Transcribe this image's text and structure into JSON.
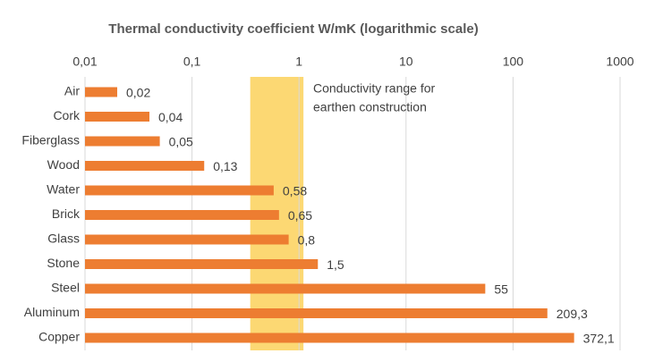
{
  "chart_data": {
    "type": "bar",
    "orientation": "horizontal",
    "title": "Thermal conductivity coefficient W/mK (logarithmic scale)",
    "categories": [
      "Air",
      "Cork",
      "Fiberglass",
      "Wood",
      "Water",
      "Brick",
      "Glass",
      "Stone",
      "Steel",
      "Aluminum",
      "Copper"
    ],
    "values": [
      0.02,
      0.04,
      0.05,
      0.13,
      0.58,
      0.65,
      0.8,
      1.5,
      55,
      209.3,
      372.1
    ],
    "value_labels": [
      "0,02",
      "0,04",
      "0,05",
      "0,13",
      "0,58",
      "0,65",
      "0,8",
      "1,5",
      "55",
      "209,3",
      "372,1"
    ],
    "color": "#ed7d31",
    "xscale": "log",
    "xlim": [
      0.01,
      1000
    ],
    "xticks": [
      {
        "value": 0.01,
        "label": "0,01"
      },
      {
        "value": 0.1,
        "label": "0,1"
      },
      1,
      10,
      100,
      1000
    ],
    "grid": true,
    "highlight_range": [
      0.35,
      1.1
    ],
    "highlight_color": "#fcd873",
    "annotation": [
      "Conductivity range for",
      "earthen construction"
    ]
  }
}
